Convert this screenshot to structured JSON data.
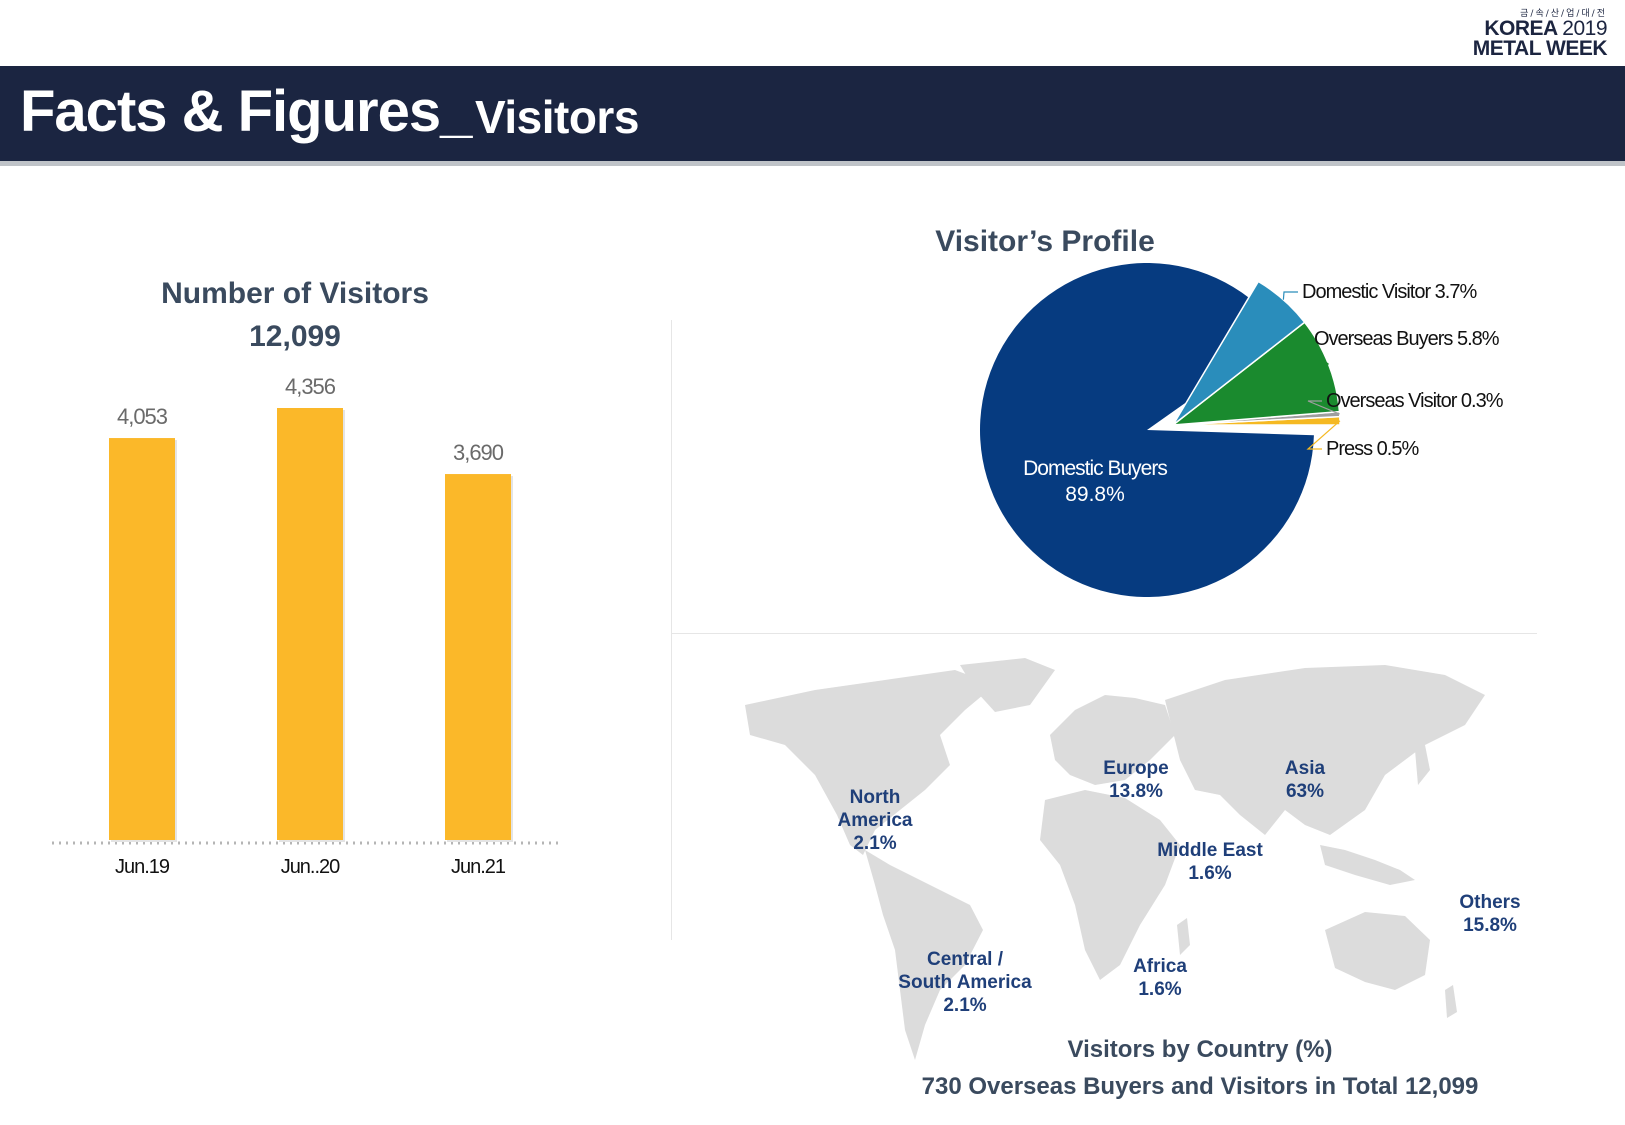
{
  "logo": {
    "korean": "금/속/산/업/대/전",
    "line1": "KOREA",
    "year": "2019",
    "line2": "METAL WEEK"
  },
  "header": {
    "title_main": "Facts & Figures_",
    "title_sub": "Visitors"
  },
  "visitors_chart": {
    "title": "Number of Visitors",
    "total": "12,099"
  },
  "profile_chart": {
    "title": "Visitor’s Profile"
  },
  "map": {
    "regions": [
      {
        "name": "North America",
        "name_l1": "North",
        "name_l2": "America",
        "value": "2.1%"
      },
      {
        "name": "Central / South America",
        "name_l1": "Central /",
        "name_l2": "South America",
        "value": "2.1%"
      },
      {
        "name": "Europe",
        "value": "13.8%"
      },
      {
        "name": "Asia",
        "value": "63%"
      },
      {
        "name": "Middle East",
        "value": "1.6%"
      },
      {
        "name": "Africa",
        "value": "1.6%"
      },
      {
        "name": "Others",
        "value": "15.8%"
      }
    ],
    "caption_title": "Visitors by Country (%)",
    "caption_sub": "730 Overseas Buyers and Visitors in Total 12,099"
  },
  "colors": {
    "banner": "#1b2541",
    "bar": "#fbb829",
    "domestic_buyers": "#063b80",
    "domestic_visitor": "#2a8dbb",
    "overseas_buyers": "#1a8a2e",
    "overseas_visitor": "#9e9e9e",
    "press": "#f5b922",
    "region_text": "#1f3f79",
    "map_land": "#dcdcdc"
  },
  "chart_data": [
    {
      "type": "bar",
      "title": "Number of Visitors",
      "categories": [
        "Jun.19",
        "Jun..20",
        "Jun.21"
      ],
      "values": [
        4053,
        4356,
        3690
      ],
      "data_labels": [
        "4,053",
        "4,356",
        "3,690"
      ],
      "ylim": [
        0,
        4356
      ],
      "grid": false
    },
    {
      "type": "pie",
      "title": "Visitor’s Profile",
      "slices": [
        {
          "label": "Domestic Buyers",
          "value": 89.8,
          "text": "89.8%"
        },
        {
          "label": "Domestic Visitor",
          "value": 3.7,
          "text": "3.7%"
        },
        {
          "label": "Overseas Buyers",
          "value": 5.8,
          "text": "5.8%"
        },
        {
          "label": "Overseas Visitor",
          "value": 0.3,
          "text": "0.3%"
        },
        {
          "label": "Press",
          "value": 0.5,
          "text": "0.5%"
        }
      ]
    }
  ]
}
